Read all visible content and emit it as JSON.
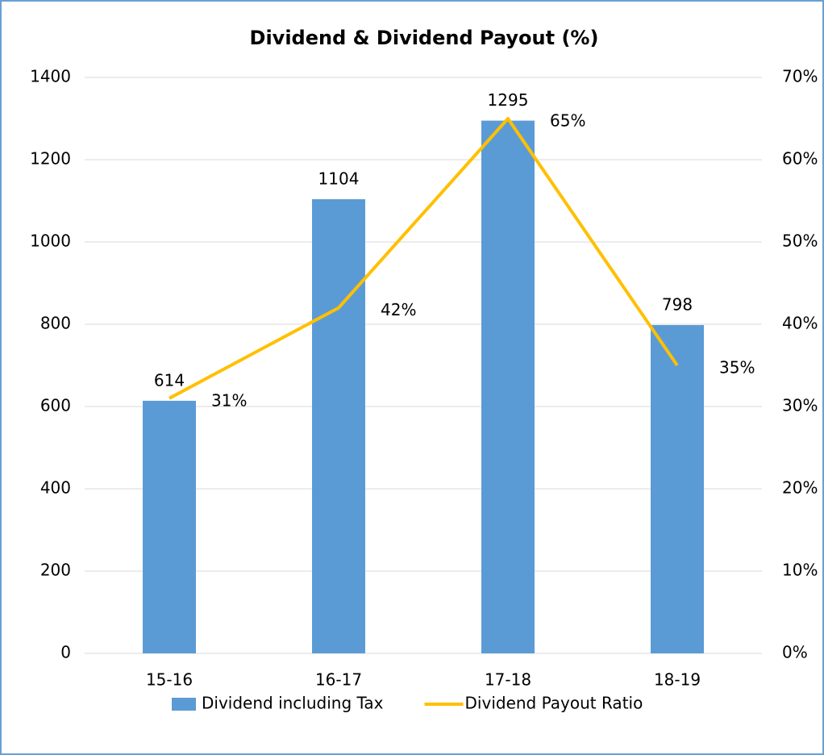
{
  "chart_data": {
    "type": "bar",
    "title": "Dividend & Dividend Payout (%)",
    "categories": [
      "15-16",
      "16-17",
      "17-18",
      "18-19"
    ],
    "series": [
      {
        "name": "Dividend including Tax",
        "type": "bar",
        "color": "#5b9bd5",
        "values": [
          614,
          1104,
          1295,
          798
        ]
      },
      {
        "name": "Dividend Payout Ratio",
        "type": "line",
        "axis": "y2",
        "color": "#ffc000",
        "values": [
          31,
          42,
          65,
          35
        ],
        "value_labels": [
          "31%",
          "42%",
          "65%",
          "35%"
        ]
      }
    ],
    "ylim": [
      0,
      1400
    ],
    "yticks": [
      0,
      200,
      400,
      600,
      800,
      1000,
      1200,
      1400
    ],
    "y2lim": [
      0,
      70
    ],
    "y2ticks": [
      {
        "value": 0,
        "label": "0%"
      },
      {
        "value": 10,
        "label": "10%"
      },
      {
        "value": 20,
        "label": "20%"
      },
      {
        "value": 30,
        "label": "30%"
      },
      {
        "value": 40,
        "label": "40%"
      },
      {
        "value": 50,
        "label": "50%"
      },
      {
        "value": 60,
        "label": "60%"
      },
      {
        "value": 70,
        "label": "70%"
      }
    ],
    "grid": true,
    "legend": "bottom"
  }
}
